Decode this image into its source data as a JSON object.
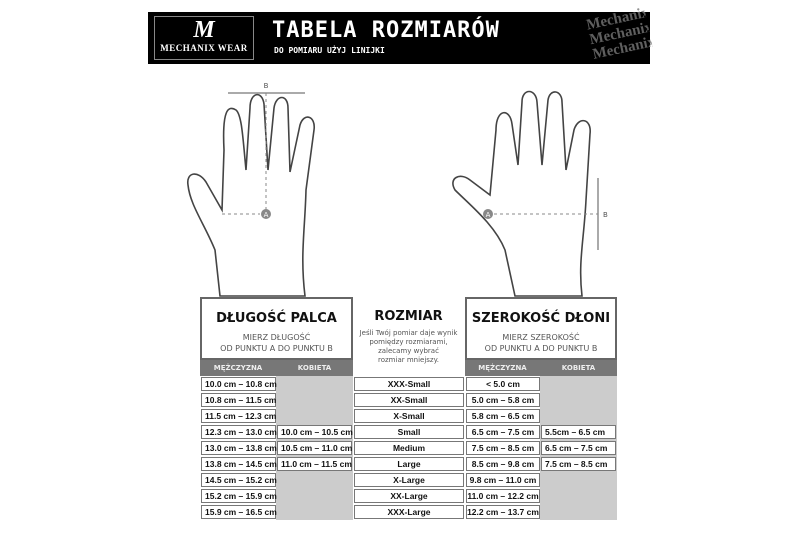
{
  "header": {
    "logo_mark": "M",
    "logo_text": "MECHANIX WEAR",
    "title": "TABELA ROZMIARÓW",
    "subtitle": "DO POMIARU UŻYJ LINIJKI",
    "watermark": "Mechanix"
  },
  "hands": {
    "point_a": "A",
    "point_b": "B"
  },
  "finger_length": {
    "title": "DŁUGOŚĆ PALCA",
    "desc1": "MIERZ DŁUGOŚĆ",
    "desc2": "OD PUNKTU A DO PUNKTU B",
    "col_men": "MĘŻCZYZNA",
    "col_women": "KOBIETA",
    "men": [
      "10.0 cm – 10.8 cm",
      "10.8 cm – 11.5 cm",
      "11.5 cm – 12.3 cm",
      "12.3 cm – 13.0 cm",
      "13.0 cm – 13.8 cm",
      "13.8 cm – 14.5 cm",
      "14.5 cm – 15.2 cm",
      "15.2 cm – 15.9 cm",
      "15.9 cm – 16.5 cm"
    ],
    "women": [
      "",
      "",
      "",
      "10.0 cm – 10.5 cm",
      "10.5 cm – 11.0 cm",
      "11.0 cm – 11.5 cm",
      "",
      "",
      ""
    ]
  },
  "size": {
    "title": "ROZMIAR",
    "desc": [
      "Jeśli Twój pomiar daje wynik",
      "pomiędzy rozmiarami,",
      "zalecamy wybrać",
      "rozmiar mniejszy."
    ],
    "sizes": [
      "XXX-Small",
      "XX-Small",
      "X-Small",
      "Small",
      "Medium",
      "Large",
      "X-Large",
      "XX-Large",
      "XXX-Large"
    ]
  },
  "palm_width": {
    "title": "SZEROKOŚĆ DŁONI",
    "desc1": "MIERZ SZEROKOŚĆ",
    "desc2": "OD PUNKTU A DO PUNKTU B",
    "col_men": "MĘŻCZYZNA",
    "col_women": "KOBIETA",
    "men": [
      "< 5.0 cm",
      "5.0 cm – 5.8 cm",
      "5.8 cm – 6.5 cm",
      "6.5 cm – 7.5 cm",
      "7.5 cm – 8.5 cm",
      "8.5 cm – 9.8 cm",
      "9.8 cm – 11.0 cm",
      "11.0 cm – 12.2 cm",
      "12.2 cm – 13.7 cm"
    ],
    "women": [
      "",
      "",
      "",
      "5.5cm – 6.5 cm",
      "6.5 cm – 7.5 cm",
      "7.5 cm – 8.5 cm",
      "",
      "",
      ""
    ]
  }
}
